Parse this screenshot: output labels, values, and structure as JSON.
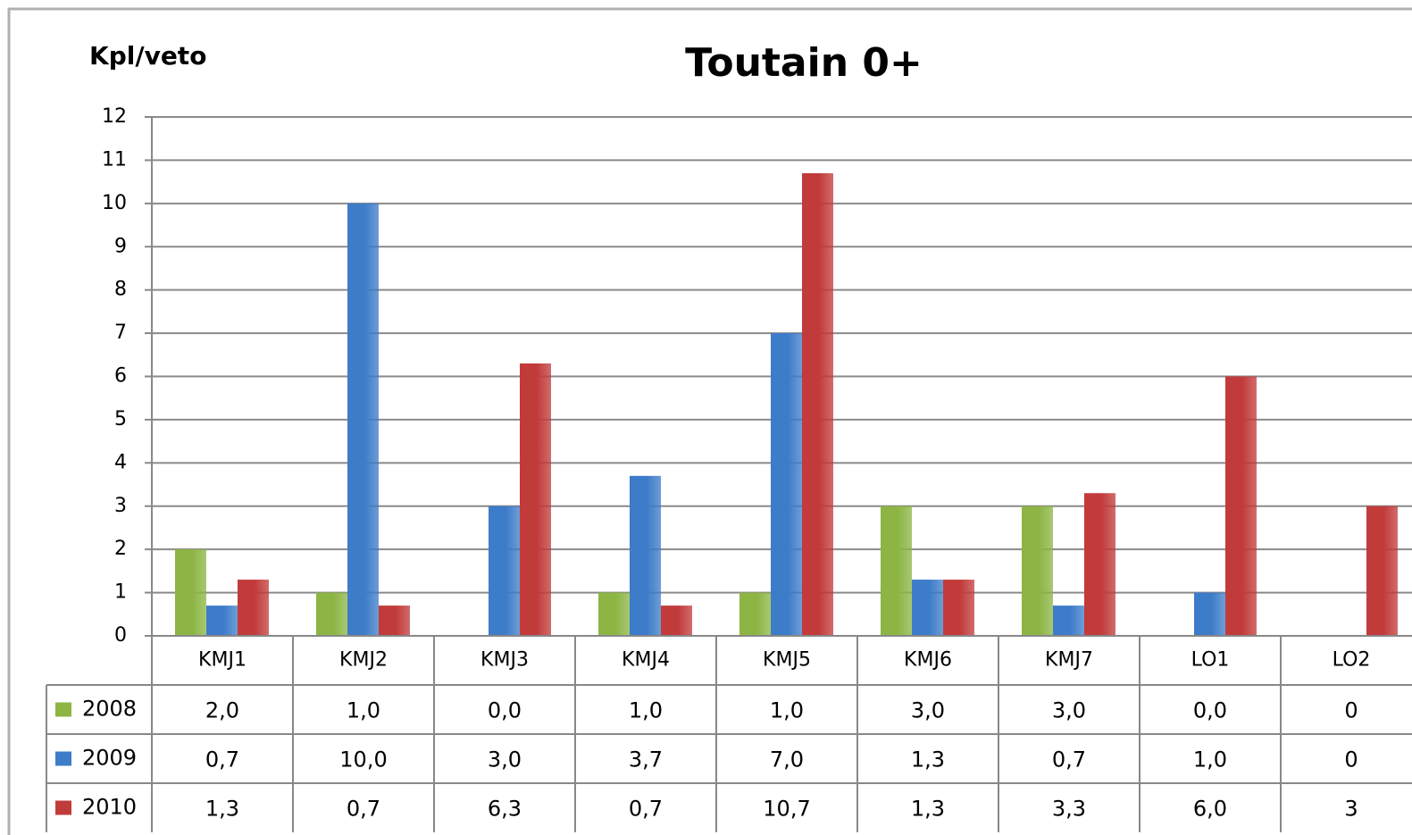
{
  "chart_data": {
    "type": "bar",
    "title": "Toutain 0+",
    "y_label": "Kpl/veto",
    "categories": [
      "KMJ1",
      "KMJ2",
      "KMJ3",
      "KMJ4",
      "KMJ5",
      "KMJ6",
      "KMJ7",
      "LO1",
      "LO2"
    ],
    "series": [
      {
        "name": "2008",
        "color": "#8cb543",
        "values": [
          2,
          1,
          0,
          1,
          1,
          3,
          3,
          0,
          0
        ],
        "value_labels": [
          "2,0",
          "1,0",
          "0,0",
          "1,0",
          "1,0",
          "3,0",
          "3,0",
          "0,0",
          "0"
        ]
      },
      {
        "name": "2009",
        "color": "#3d7cc9",
        "values": [
          0.7,
          10,
          3,
          3.7,
          7,
          1.3,
          0.7,
          1,
          0
        ],
        "value_labels": [
          "0,7",
          "10,0",
          "3,0",
          "3,7",
          "7,0",
          "1,3",
          "0,7",
          "1,0",
          "0"
        ]
      },
      {
        "name": "2010",
        "color": "#c23b3b",
        "values": [
          1.3,
          0.7,
          6.3,
          0.7,
          10.7,
          1.3,
          3.3,
          6,
          3
        ],
        "value_labels": [
          "1,3",
          "0,7",
          "6,3",
          "0,7",
          "10,7",
          "1,3",
          "3,3",
          "6,0",
          "3"
        ]
      }
    ],
    "ylim": [
      0,
      12
    ],
    "yticks": [
      0,
      1,
      2,
      3,
      4,
      5,
      6,
      7,
      8,
      9,
      10,
      11,
      12
    ],
    "grid": true,
    "data_table": true
  }
}
